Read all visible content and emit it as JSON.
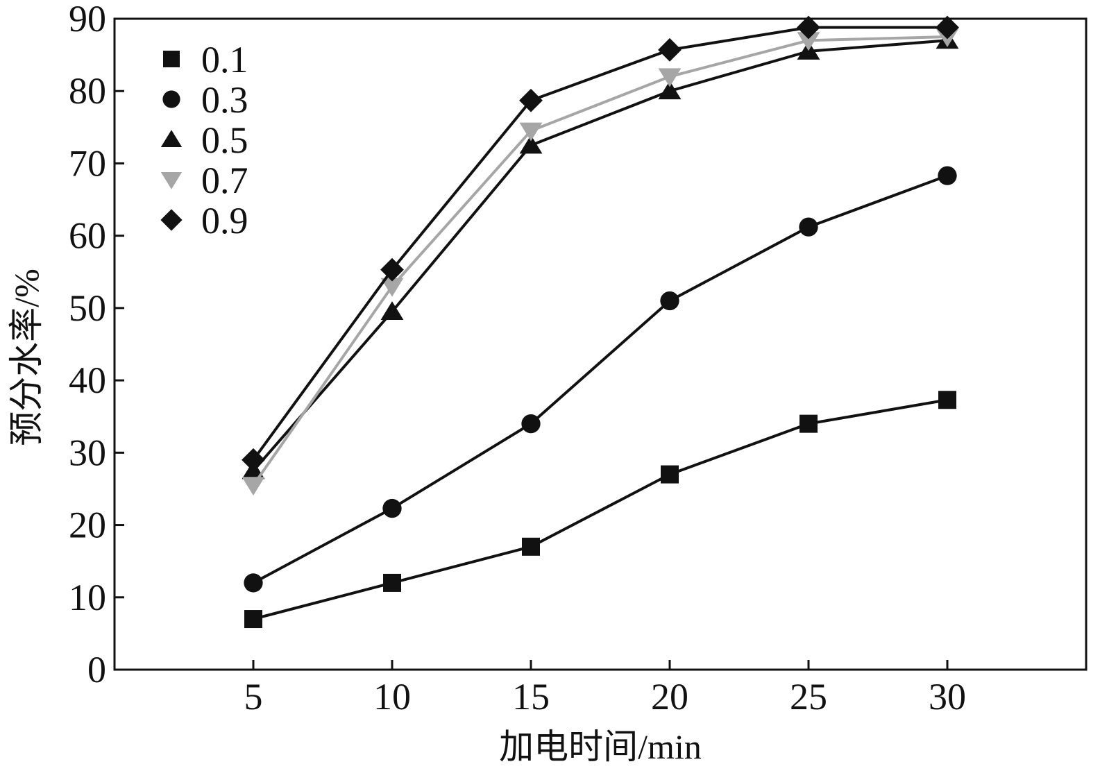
{
  "chart_data": {
    "type": "line",
    "title": "",
    "xlabel": "加电时间/min",
    "ylabel": "预分水率/%",
    "x": [
      5,
      10,
      15,
      20,
      25,
      30
    ],
    "xlim": [
      0,
      35
    ],
    "ylim": [
      0,
      90
    ],
    "xticks": [
      "5",
      "10",
      "15",
      "20",
      "25",
      "30"
    ],
    "yticks": [
      "0",
      "10",
      "20",
      "30",
      "40",
      "50",
      "60",
      "70",
      "80",
      "90"
    ],
    "grid": false,
    "legend_position": "top-left",
    "series": [
      {
        "name": "0.1",
        "marker": "square",
        "color": "#111111",
        "values": [
          7,
          12,
          17,
          27,
          34,
          37.3
        ]
      },
      {
        "name": "0.3",
        "marker": "circle",
        "color": "#111111",
        "values": [
          12,
          22.3,
          34,
          51,
          61.2,
          68.3
        ]
      },
      {
        "name": "0.5",
        "marker": "triangle-up",
        "color": "#111111",
        "values": [
          27.5,
          49.5,
          72.5,
          80,
          85.5,
          87
        ]
      },
      {
        "name": "0.7",
        "marker": "triangle-down",
        "color": "#a6a6a6",
        "values": [
          25.5,
          53,
          74.5,
          82,
          87,
          87.5
        ]
      },
      {
        "name": "0.9",
        "marker": "diamond",
        "color": "#111111",
        "values": [
          29,
          55.3,
          78.7,
          85.7,
          88.8,
          88.8
        ]
      }
    ]
  }
}
